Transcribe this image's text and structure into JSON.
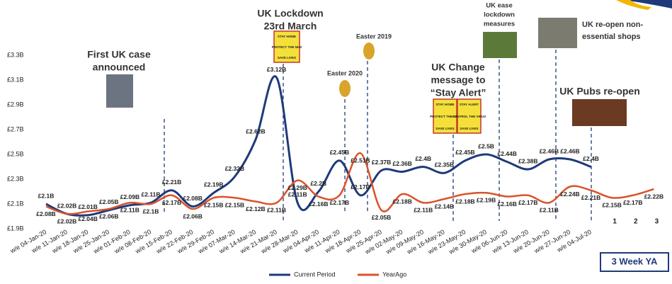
{
  "chart_data": {
    "type": "line",
    "categories": [
      "w/e 04-Jan-20",
      "w/e 11-Jan-20",
      "w/e 18-Jan-20",
      "w/e 25-Jan-20",
      "w/e 01-Feb-20",
      "w/e 08-Feb-20",
      "w/e 15-Feb-20",
      "w/e 22-Feb-20",
      "w/e 29-Feb-20",
      "w/e 07-Mar-20",
      "w/e 14-Mar-20",
      "w/e 21-Mar-20",
      "w/e 28-Mar-20",
      "w/e 04-Apr-20",
      "w/e 11-Apr-20",
      "w/e 18-Apr-20",
      "w/e 25-Apr-20",
      "w/e 02-May-20",
      "w/e 09-May-20",
      "w/e 16-May-20",
      "w/e 23-May-20",
      "w/e 30-May-20",
      "w/e 06-Jun-20",
      "w/e 13-Jun-20",
      "w/e 20-Jun-20",
      "w/e 27-Jun-20",
      "w/e 04-Jul-20",
      "1",
      "2",
      "3"
    ],
    "series": [
      {
        "name": "Current Period",
        "color": "#1f3a7a",
        "values": [
          2.1,
          2.02,
          2.01,
          2.05,
          2.09,
          2.11,
          2.21,
          2.08,
          2.19,
          2.32,
          2.62,
          3.12,
          2.11,
          2.2,
          2.45,
          2.17,
          2.37,
          2.36,
          2.4,
          2.35,
          2.45,
          2.5,
          2.44,
          2.38,
          2.46,
          2.46,
          2.4,
          null,
          null,
          null
        ],
        "value_labels": [
          "£2.1B",
          "£2.02B",
          "£2.01B",
          "£2.05B",
          "£2.09B",
          "£2.11B",
          "£2.21B",
          "£2.08B",
          "£2.19B",
          "£2.32B",
          "£2.62B",
          "£3.12B",
          "£2.11B",
          "£2.2B",
          "£2.45B",
          "£2.17B",
          "£2.37B",
          "£2.36B",
          "£2.4B",
          "£2.35B",
          "£2.45B",
          "£2.5B",
          "£2.44B",
          "£2.38B",
          "£2.46B",
          "£2.46B",
          "£2.4B",
          null,
          null,
          null
        ]
      },
      {
        "name": "YearAgo",
        "color": "#d9532c",
        "values": [
          2.08,
          2.02,
          2.04,
          2.06,
          2.11,
          2.1,
          2.17,
          2.06,
          2.15,
          2.15,
          2.12,
          2.11,
          2.29,
          2.16,
          2.17,
          2.51,
          2.05,
          2.18,
          2.11,
          2.14,
          2.18,
          2.19,
          2.16,
          2.17,
          2.11,
          2.24,
          2.21,
          2.15,
          2.17,
          2.22
        ],
        "value_labels": [
          "£2.08B",
          "£2.02B",
          "£2.04B",
          "£2.06B",
          "£2.11B",
          "£2.1B",
          "£2.17B",
          "£2.06B",
          "£2.15B",
          "£2.15B",
          "£2.12B",
          "£2.11B",
          "£2.29B",
          "£2.16B",
          "£2.17B",
          "£2.51B",
          "£2.05B",
          "£2.18B",
          "£2.11B",
          "£2.14B",
          "£2.18B",
          "£2.19B",
          "£2.16B",
          "£2.17B",
          "£2.11B",
          "£2.24B",
          "£2.21B",
          "£2.15B",
          "£2.17B",
          "£2.22B"
        ]
      }
    ],
    "ylim": [
      1.9,
      3.3
    ],
    "yticks": [
      {
        "value": 1.9,
        "label": "£1.9B"
      },
      {
        "value": 2.1,
        "label": "£2.1B"
      },
      {
        "value": 2.3,
        "label": "£2.3B"
      },
      {
        "value": 2.5,
        "label": "£2.5B"
      },
      {
        "value": 2.7,
        "label": "£2.7B"
      },
      {
        "value": 2.9,
        "label": "£2.9B"
      },
      {
        "value": 3.1,
        "label": "£3.1B"
      },
      {
        "value": 3.3,
        "label": "£3.3B"
      }
    ],
    "grid": false,
    "legend": "bottom",
    "annotations": [
      {
        "lines": [
          "First UK case",
          "announced"
        ]
      },
      {
        "lines": [
          "UK Lockdown",
          "23rd March"
        ],
        "signs": [
          [
            "STAY HOME",
            "PROTECT THE NHS",
            "SAVE LIVES"
          ]
        ]
      },
      {
        "lines": [
          "Easter 2020"
        ]
      },
      {
        "lines": [
          "Easter 2019"
        ]
      },
      {
        "lines": [
          "UK Change",
          "message to",
          "“Stay Alert”"
        ],
        "signs": [
          [
            "STAY HOME",
            "PROTECT THE NHS",
            "SAVE LIVES"
          ],
          [
            "STAY ALERT",
            "CONTROL THE VIRUS",
            "SAVE LIVES"
          ]
        ]
      },
      {
        "lines": [
          "UK ease",
          "lockdown",
          "measures"
        ]
      },
      {
        "lines": [
          "UK re-open non-",
          "essential shops"
        ]
      },
      {
        "lines": [
          "UK Pubs re-open"
        ]
      }
    ],
    "box_label": "3 Week YA"
  }
}
